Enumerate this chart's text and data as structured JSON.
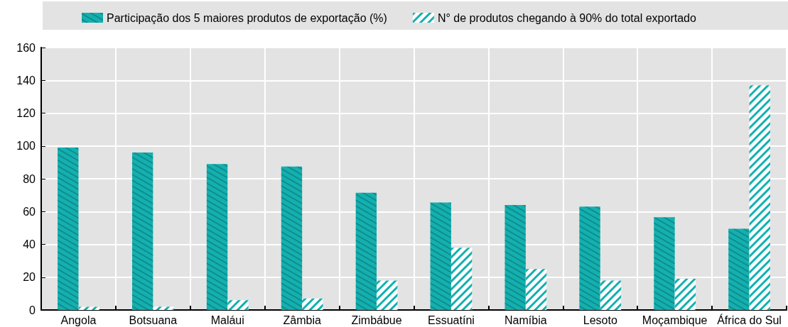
{
  "chart_data": {
    "type": "bar",
    "categories": [
      "Angola",
      "Botsuana",
      "Maláui",
      "Zâmbia",
      "Zimbábue",
      "Essuatíni",
      "Namíbia",
      "Lesoto",
      "Moçambique",
      "África do Sul"
    ],
    "series": [
      {
        "name": "Participação dos 5 maiores produtos de exportação (%)",
        "color": "#14b0b0",
        "values": [
          99,
          96,
          89,
          87.5,
          71.5,
          65.5,
          64,
          63,
          56.5,
          49.5
        ]
      },
      {
        "name": "N° de produtos chegando à 90% do total exportado",
        "color": "#14b0b0",
        "values": [
          2,
          2,
          6,
          7,
          18,
          38,
          25,
          18,
          19,
          137
        ]
      }
    ],
    "ylim": [
      0,
      160
    ],
    "yticks": [
      0,
      20,
      40,
      60,
      80,
      100,
      120,
      140,
      160
    ],
    "grid": true,
    "legend": "top"
  }
}
